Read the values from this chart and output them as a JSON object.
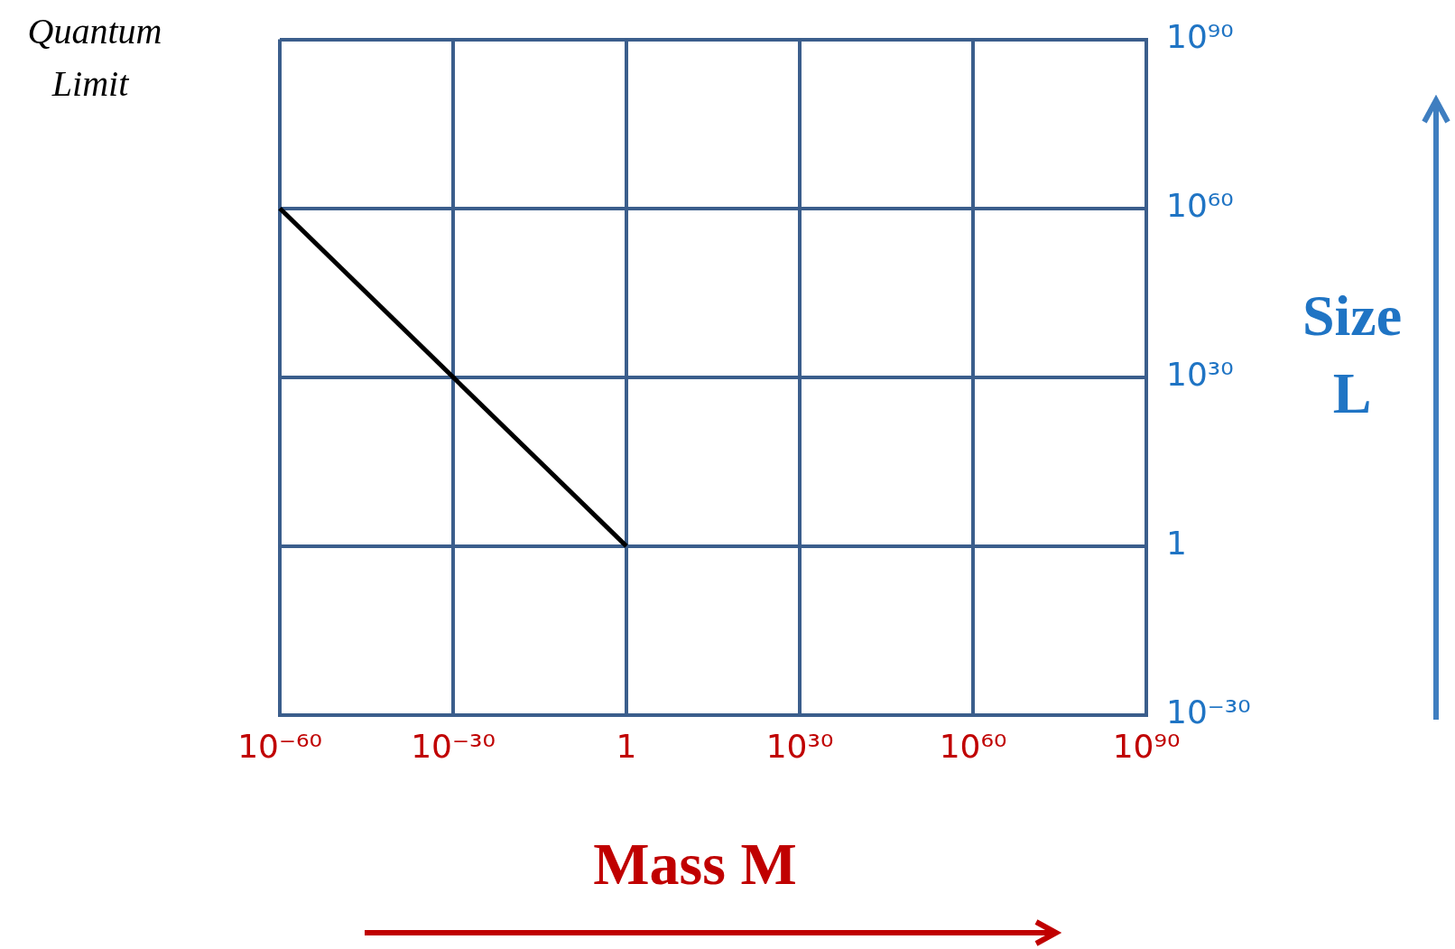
{
  "chart_data": {
    "type": "line",
    "log": "xy",
    "xlabel": "Mass M",
    "ylabel": "Size L",
    "x": [
      1e-60,
      1
    ],
    "series": [
      {
        "color": "#000000",
        "values": [
          1e+60,
          1
        ]
      }
    ],
    "xlim": [
      1e-60,
      1e+90
    ],
    "ylim": [
      1e-30,
      1e+90
    ],
    "xticks": [
      {
        "value": 1e-60,
        "label": "10⁻⁶⁰"
      },
      {
        "value": 1e-30,
        "label": "10⁻³⁰"
      },
      {
        "value": 1,
        "label": "1"
      },
      {
        "value": 1e+30,
        "label": "10³⁰"
      },
      {
        "value": 1e+60,
        "label": "10⁶⁰"
      },
      {
        "value": 1e+90,
        "label": "10⁹⁰"
      }
    ],
    "yticks": [
      {
        "value": 1e-30,
        "label": "10⁻³⁰"
      },
      {
        "value": 1,
        "label": "1"
      },
      {
        "value": 1e+30,
        "label": "10³⁰"
      },
      {
        "value": 1e+60,
        "label": "10⁶⁰"
      },
      {
        "value": 1e+90,
        "label": "10⁹⁰"
      }
    ],
    "grid": true,
    "legend": false,
    "marker": "none",
    "line_style": "solid",
    "annotations": [
      "Quantum Limit"
    ]
  }
}
